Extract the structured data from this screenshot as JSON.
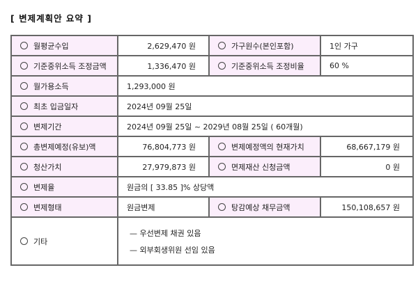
{
  "title": "[ 변제계획안 요약 ]",
  "rows": {
    "r1": {
      "l1": "월평균수입",
      "v1": "2,629,470 원",
      "l2": "가구원수(본인포함)",
      "v2": "1인 가구"
    },
    "r2": {
      "l1": "기준중위소득 조정금액",
      "v1": "1,336,470 원",
      "l2": "기준중위소득 조정비율",
      "v2": "60 %"
    },
    "r3": {
      "l1": "월가용소득",
      "v1": "1,293,000 원"
    },
    "r4": {
      "l1": "최초 입금일자",
      "v1": "2024년 09월 25일"
    },
    "r5": {
      "l1": "변제기간",
      "v1": "2024년 09월 25일 ~ 2029년 08월 25일 ( 60개월)"
    },
    "r6": {
      "l1": "총변제예정(유보)액",
      "v1": "76,804,773 원",
      "l2": "변제예정액의 현재가치",
      "v2": "68,667,179 원"
    },
    "r7": {
      "l1": "청산가치",
      "v1": "27,979,873 원",
      "l2": "면제재산 신청금액",
      "v2": "0 원"
    },
    "r8": {
      "l1": "변제율",
      "v1": "원금의 [ 33.85 ]% 상당액"
    },
    "r9": {
      "l1": "변제형태",
      "v1": "원금변제",
      "l2": "탕감예상 채무금액",
      "v2": "150,108,657 원"
    },
    "r10": {
      "l1": "기타",
      "lines": [
        "— 우선변제 채권 있음",
        "— 외부회생위원 선임 있음"
      ]
    }
  },
  "colors": {
    "label_bg": "#fbeefb",
    "border": "#666666"
  }
}
